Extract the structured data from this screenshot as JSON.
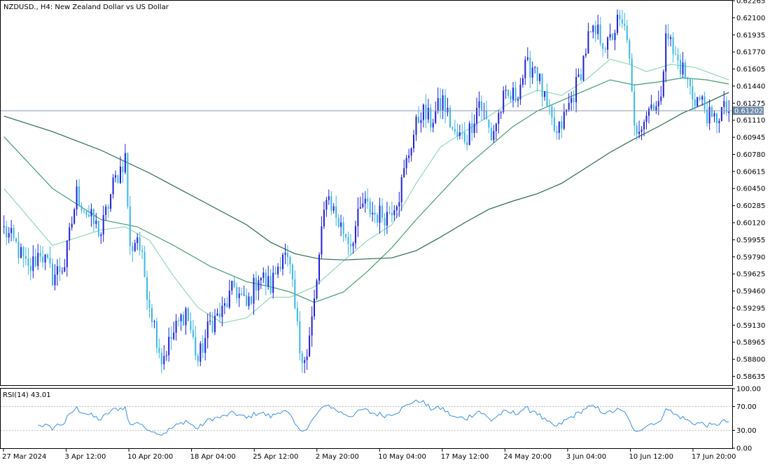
{
  "window": {
    "title": "NZDUSD., H4:  New Zealand Dollar vs US Dollar"
  },
  "colors": {
    "up": "#1f1fd6",
    "down": "#38b6e8",
    "ma_fast": "#8fd9b9",
    "ma_mid": "#3f9b6e",
    "ma_slow": "#276a4a",
    "rsi": "#3a8fe0",
    "axis": "#000000",
    "grid": "#c0c0c0",
    "price_label_bg": "#6f8aa8"
  },
  "chart_data": [
    {
      "type": "candlestick",
      "symbol": "NZDUSD.",
      "timeframe": "H4",
      "title": "NZDUSD., H4:  New Zealand Dollar vs US Dollar",
      "ylim": [
        0.5855,
        0.62265
      ],
      "y_ticks": [
        "0.62265",
        "0.62100",
        "0.61935",
        "0.61770",
        "0.61605",
        "0.61440",
        "0.61275",
        "0.61110",
        "0.60945",
        "0.60780",
        "0.60615",
        "0.60450",
        "0.60285",
        "0.60120",
        "0.59955",
        "0.59790",
        "0.59625",
        "0.59460",
        "0.59295",
        "0.59130",
        "0.58965",
        "0.58800",
        "0.58635"
      ],
      "current_price": "0.61202",
      "x_ticks": [
        "27 Mar 2024",
        "3 Apr 12:00",
        "10 Apr 20:00",
        "18 Apr 04:00",
        "25 Apr 12:00",
        "2 May 20:00",
        "10 May 04:00",
        "17 May 12:00",
        "24 May 20:00",
        "3 Jun 04:00",
        "10 Jun 12:00",
        "17 Jun 20:00"
      ],
      "candle_count": 300,
      "price_path": [
        [
          0,
          0.6005
        ],
        [
          5,
          0.599
        ],
        [
          10,
          0.5965
        ],
        [
          15,
          0.5985
        ],
        [
          20,
          0.596
        ],
        [
          25,
          0.5972
        ],
        [
          30,
          0.604
        ],
        [
          35,
          0.6018
        ],
        [
          40,
          0.6002
        ],
        [
          45,
          0.6048
        ],
        [
          50,
          0.6075
        ],
        [
          52,
          0.5985
        ],
        [
          55,
          0.6
        ],
        [
          60,
          0.5935
        ],
        [
          65,
          0.588
        ],
        [
          70,
          0.5905
        ],
        [
          75,
          0.5928
        ],
        [
          80,
          0.5878
        ],
        [
          85,
          0.5915
        ],
        [
          90,
          0.5925
        ],
        [
          95,
          0.595
        ],
        [
          100,
          0.593
        ],
        [
          105,
          0.5962
        ],
        [
          110,
          0.595
        ],
        [
          115,
          0.5985
        ],
        [
          118,
          0.5965
        ],
        [
          122,
          0.589
        ],
        [
          125,
          0.5882
        ],
        [
          128,
          0.5935
        ],
        [
          133,
          0.6042
        ],
        [
          138,
          0.6012
        ],
        [
          143,
          0.5993
        ],
        [
          148,
          0.603
        ],
        [
          153,
          0.602
        ],
        [
          158,
          0.602
        ],
        [
          163,
          0.604
        ],
        [
          168,
          0.609
        ],
        [
          172,
          0.612
        ],
        [
          176,
          0.611
        ],
        [
          181,
          0.613
        ],
        [
          186,
          0.6095
        ],
        [
          191,
          0.6095
        ],
        [
          196,
          0.613
        ],
        [
          201,
          0.6095
        ],
        [
          206,
          0.613
        ],
        [
          211,
          0.6135
        ],
        [
          215,
          0.616
        ],
        [
          219,
          0.6165
        ],
        [
          224,
          0.612
        ],
        [
          228,
          0.6095
        ],
        [
          233,
          0.6125
        ],
        [
          237,
          0.615
        ],
        [
          241,
          0.619
        ],
        [
          245,
          0.6195
        ],
        [
          249,
          0.6182
        ],
        [
          253,
          0.6205
        ],
        [
          257,
          0.6195
        ],
        [
          260,
          0.61
        ],
        [
          264,
          0.6115
        ],
        [
          268,
          0.613
        ],
        [
          271,
          0.6125
        ],
        [
          273,
          0.6205
        ],
        [
          276,
          0.6175
        ],
        [
          280,
          0.616
        ],
        [
          284,
          0.6135
        ],
        [
          288,
          0.6128
        ],
        [
          292,
          0.6108
        ],
        [
          296,
          0.612
        ],
        [
          299,
          0.612
        ]
      ],
      "moving_averages": [
        {
          "color_key": "ma_fast",
          "points": [
            [
              0,
              0.6045
            ],
            [
              20,
              0.599
            ],
            [
              40,
              0.6005
            ],
            [
              50,
              0.6008
            ],
            [
              60,
              0.5995
            ],
            [
              70,
              0.596
            ],
            [
              80,
              0.593
            ],
            [
              90,
              0.5915
            ],
            [
              100,
              0.592
            ],
            [
              110,
              0.594
            ],
            [
              118,
              0.594
            ],
            [
              128,
              0.595
            ],
            [
              140,
              0.5975
            ],
            [
              150,
              0.5995
            ],
            [
              160,
              0.601
            ],
            [
              170,
              0.605
            ],
            [
              180,
              0.6085
            ],
            [
              190,
              0.61
            ],
            [
              200,
              0.6115
            ],
            [
              210,
              0.613
            ],
            [
              220,
              0.614
            ],
            [
              230,
              0.6135
            ],
            [
              240,
              0.615
            ],
            [
              250,
              0.617
            ],
            [
              258,
              0.6165
            ],
            [
              265,
              0.6158
            ],
            [
              275,
              0.6165
            ],
            [
              285,
              0.6162
            ],
            [
              299,
              0.615
            ]
          ]
        },
        {
          "color_key": "ma_mid",
          "points": [
            [
              0,
              0.6095
            ],
            [
              20,
              0.6045
            ],
            [
              40,
              0.6015
            ],
            [
              55,
              0.6008
            ],
            [
              70,
              0.599
            ],
            [
              85,
              0.597
            ],
            [
              100,
              0.5955
            ],
            [
              110,
              0.595
            ],
            [
              118,
              0.5945
            ],
            [
              128,
              0.5935
            ],
            [
              140,
              0.5945
            ],
            [
              150,
              0.5965
            ],
            [
              160,
              0.5988
            ],
            [
              170,
              0.6015
            ],
            [
              180,
              0.604
            ],
            [
              190,
              0.6065
            ],
            [
              200,
              0.6085
            ],
            [
              210,
              0.6105
            ],
            [
              220,
              0.612
            ],
            [
              230,
              0.613
            ],
            [
              240,
              0.614
            ],
            [
              250,
              0.615
            ],
            [
              260,
              0.6145
            ],
            [
              270,
              0.6148
            ],
            [
              280,
              0.6152
            ],
            [
              290,
              0.615
            ],
            [
              299,
              0.6146
            ]
          ]
        },
        {
          "color_key": "ma_slow",
          "points": [
            [
              0,
              0.6115
            ],
            [
              20,
              0.61
            ],
            [
              40,
              0.6082
            ],
            [
              60,
              0.606
            ],
            [
              80,
              0.6035
            ],
            [
              100,
              0.601
            ],
            [
              110,
              0.5993
            ],
            [
              120,
              0.5982
            ],
            [
              130,
              0.5977
            ],
            [
              140,
              0.5976
            ],
            [
              150,
              0.5977
            ],
            [
              160,
              0.5978
            ],
            [
              170,
              0.5985
            ],
            [
              180,
              0.5998
            ],
            [
              190,
              0.6012
            ],
            [
              200,
              0.6025
            ],
            [
              210,
              0.6033
            ],
            [
              220,
              0.604
            ],
            [
              230,
              0.605
            ],
            [
              240,
              0.6065
            ],
            [
              250,
              0.608
            ],
            [
              260,
              0.6093
            ],
            [
              270,
              0.6105
            ],
            [
              280,
              0.6118
            ],
            [
              290,
              0.6128
            ],
            [
              299,
              0.6138
            ]
          ]
        }
      ]
    },
    {
      "type": "line",
      "indicator": "RSI",
      "title": "RSI(14) 43.01",
      "ylim": [
        0,
        100
      ],
      "y_ticks": [
        "100.00",
        "70.00",
        "30.00",
        "0.00"
      ],
      "levels": [
        70,
        30
      ]
    }
  ]
}
